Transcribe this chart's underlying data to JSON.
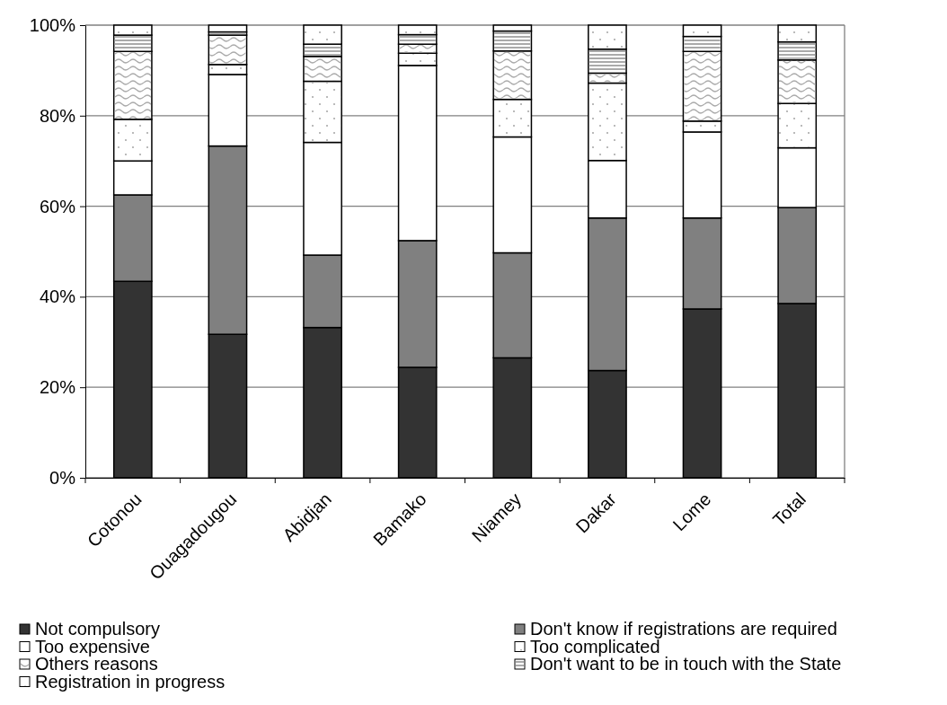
{
  "chart_data": {
    "type": "bar",
    "stacked": true,
    "categories": [
      "Cotonou",
      "Ouagadougou",
      "Abidjan",
      "Bamako",
      "Niamey",
      "Dakar",
      "Lome",
      "Total"
    ],
    "series": [
      {
        "name": "Not compulsory",
        "color": "#333333",
        "values": [
          43.4,
          31.7,
          33.2,
          24.4,
          26.5,
          23.7,
          37.3,
          38.5
        ]
      },
      {
        "name": "Don't know if registrations are required",
        "color": "#808080",
        "values": [
          19.1,
          41.6,
          16.0,
          28.0,
          23.2,
          33.7,
          20.1,
          21.2
        ]
      },
      {
        "name": "Too expensive",
        "color": "#ffffff",
        "values": [
          7.5,
          15.8,
          24.9,
          38.7,
          25.6,
          12.7,
          19.0,
          13.2
        ]
      },
      {
        "name": "Too complicated",
        "color": "#ffffff",
        "values": [
          9.2,
          2.2,
          13.5,
          2.7,
          8.3,
          17.1,
          2.4,
          9.8
        ]
      },
      {
        "name": "Others reasons",
        "color": "#ffffff",
        "values": [
          15.0,
          6.5,
          5.5,
          2.0,
          10.7,
          2.2,
          15.4,
          9.6
        ]
      },
      {
        "name": "Don't want to be in touch with the State",
        "color": "#ffffff",
        "values": [
          3.6,
          0.7,
          2.7,
          2.1,
          4.4,
          5.3,
          3.3,
          4.0
        ]
      },
      {
        "name": "Registration in progress",
        "color": "#ffffff",
        "values": [
          2.2,
          1.5,
          4.2,
          2.1,
          1.3,
          5.3,
          2.5,
          3.7
        ]
      }
    ],
    "ylim": [
      0,
      100
    ],
    "yticks": [
      {
        "value": 0,
        "label": "0%"
      },
      {
        "value": 20,
        "label": "20%"
      },
      {
        "value": 40,
        "label": "40%"
      },
      {
        "value": 60,
        "label": "60%"
      },
      {
        "value": 80,
        "label": "80%"
      },
      {
        "value": 100,
        "label": "100%"
      }
    ],
    "grid": "y",
    "legend": "bottom"
  }
}
